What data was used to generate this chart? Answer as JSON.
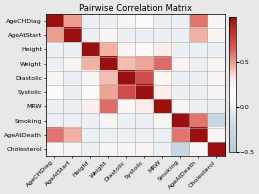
{
  "title": "Pairwise Correlation Matrix",
  "variables": [
    "AgeCHDiag",
    "AgeAtStart",
    "Height",
    "Weight",
    "Diastolic",
    "Systolic",
    "MRW",
    "Smoking",
    "AgeAtDeath",
    "Cholesterol"
  ],
  "matrix": [
    [
      1.0,
      0.5,
      0.02,
      0.02,
      0.08,
      0.12,
      0.02,
      0.02,
      0.6,
      0.08
    ],
    [
      0.5,
      1.0,
      0.02,
      0.08,
      0.02,
      0.02,
      0.02,
      0.02,
      0.45,
      0.08
    ],
    [
      0.02,
      0.02,
      1.0,
      0.45,
      0.08,
      0.12,
      0.28,
      0.02,
      0.02,
      0.02
    ],
    [
      0.02,
      0.08,
      0.45,
      1.0,
      0.42,
      0.48,
      0.62,
      0.08,
      0.02,
      0.08
    ],
    [
      0.08,
      0.02,
      0.08,
      0.42,
      1.0,
      0.72,
      0.22,
      0.02,
      0.02,
      0.08
    ],
    [
      0.12,
      0.02,
      0.12,
      0.48,
      0.72,
      1.0,
      0.28,
      0.02,
      0.02,
      0.08
    ],
    [
      0.02,
      0.02,
      0.28,
      0.62,
      0.22,
      0.28,
      1.0,
      0.08,
      0.02,
      0.02
    ],
    [
      0.02,
      0.02,
      0.02,
      0.08,
      0.02,
      0.02,
      0.08,
      1.0,
      0.6,
      -0.28
    ],
    [
      0.6,
      0.45,
      0.02,
      0.02,
      0.02,
      0.02,
      0.02,
      0.6,
      1.0,
      0.08
    ],
    [
      0.08,
      0.08,
      0.02,
      0.08,
      0.08,
      0.08,
      0.02,
      -0.28,
      0.08,
      1.0
    ]
  ],
  "colorbar_ticks": [
    0.5,
    0.0,
    -0.5
  ],
  "vmin": -0.5,
  "vmax": 1.0,
  "bg_color": "#e8e8e8",
  "grid_color": "#aaaaaa",
  "title_fontsize": 6,
  "tick_fontsize": 4.5,
  "cbar_fontsize": 4.5
}
